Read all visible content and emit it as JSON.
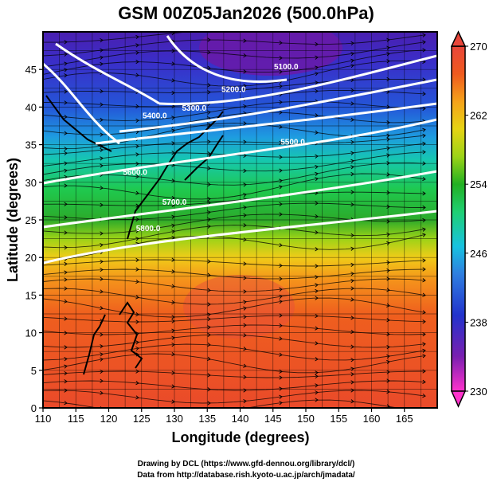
{
  "chart_data": {
    "type": "heatmap",
    "title": "GSM 00Z05Jan2026 (500.0hPa)",
    "xlabel": "Longitude (degrees)",
    "ylabel": "Latitude  (degrees)",
    "xlim": [
      110,
      170
    ],
    "ylim": [
      0,
      50
    ],
    "xticks": [
      "110",
      "115",
      "120",
      "125",
      "130",
      "135",
      "140",
      "145",
      "150",
      "155",
      "160",
      "165"
    ],
    "yticks": [
      "0",
      "5",
      "10",
      "15",
      "20",
      "25",
      "30",
      "35",
      "40",
      "45"
    ],
    "colorbar": {
      "min": 230,
      "max": 270,
      "ticks": [
        "270",
        "262",
        "254",
        "246",
        "238",
        "230"
      ],
      "colors": [
        "#ff33cc",
        "#7a1fb0",
        "#2233cc",
        "#2f7fe0",
        "#17c2e0",
        "#1fcf73",
        "#22b022",
        "#9cd317",
        "#e6d314",
        "#f5a21a",
        "#ef5a1e",
        "#e8463a"
      ]
    },
    "contours": [
      {
        "label": "5100.0",
        "lon": 147,
        "lat": 45
      },
      {
        "label": "5200.0",
        "lon": 139,
        "lat": 42
      },
      {
        "label": "5300.0",
        "lon": 133,
        "lat": 39.5
      },
      {
        "label": "5400.0",
        "lon": 127,
        "lat": 38.5
      },
      {
        "label": "5500.0",
        "lon": 148,
        "lat": 35
      },
      {
        "label": "5600.0",
        "lon": 124,
        "lat": 31
      },
      {
        "label": "5700.0",
        "lon": 130,
        "lat": 27
      },
      {
        "label": "5800.0",
        "lon": 126,
        "lat": 23.5
      }
    ],
    "credits": [
      "Drawing by DCL (https://www.gfd-dennou.org/library/dcl/)",
      "Data from http://database.rish.kyoto-u.ac.jp/arch/jmadata/"
    ]
  }
}
